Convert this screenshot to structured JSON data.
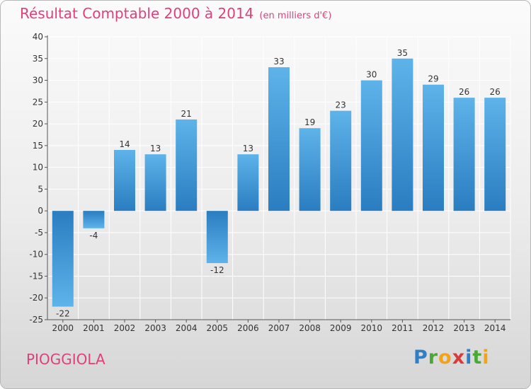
{
  "header": {
    "title": "Résultat Comptable 2000 à 2014",
    "subtitle": "(en milliers d'€)"
  },
  "footer": {
    "commune": "PIOGGIOLA",
    "logo_letters": [
      "P",
      "r",
      "o",
      "x",
      "i",
      "t",
      "i"
    ]
  },
  "colors": {
    "accent": "#e0407a",
    "bar_light": "#5eb3ea",
    "bar_dark": "#2a7dc0"
  },
  "chart_data": {
    "type": "bar",
    "title": "Résultat Comptable 2000 à 2014",
    "subtitle": "(en milliers d'€)",
    "xlabel": "",
    "ylabel": "",
    "categories": [
      "2000",
      "2001",
      "2002",
      "2003",
      "2004",
      "2005",
      "2006",
      "2007",
      "2008",
      "2009",
      "2010",
      "2011",
      "2012",
      "2013",
      "2014"
    ],
    "values": [
      -22,
      -4,
      14,
      13,
      21,
      -12,
      13,
      33,
      19,
      23,
      30,
      35,
      29,
      26,
      26
    ],
    "labels": [
      "-22",
      "-4",
      "14",
      "13",
      "21",
      "-12",
      "13",
      "33",
      "19",
      "23",
      "30",
      "35",
      "29",
      "26",
      "26"
    ],
    "ylim": [
      -25,
      40
    ],
    "yticks": [
      40,
      35,
      30,
      25,
      20,
      15,
      10,
      5,
      0,
      -5,
      -10,
      -15,
      -20,
      -25
    ],
    "grid": true
  }
}
